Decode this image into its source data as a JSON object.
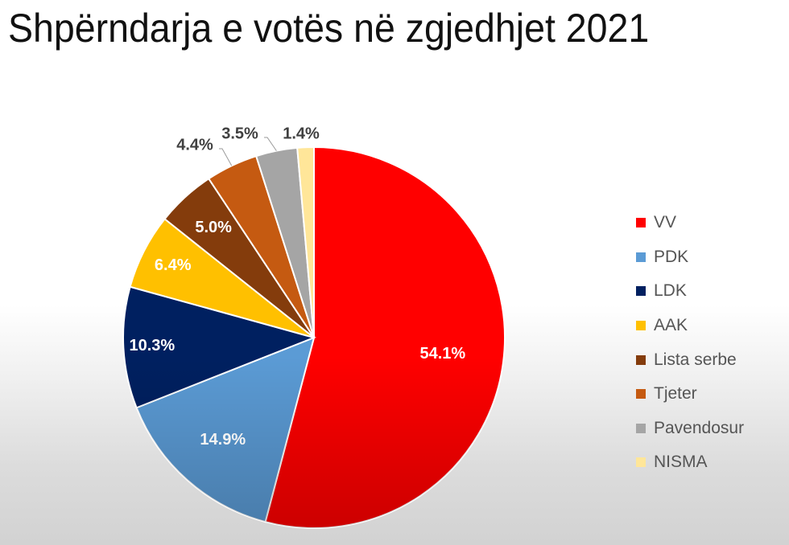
{
  "title": "Shpërndarja e votës në zgjedhjet 2021",
  "chart_data": {
    "type": "pie",
    "title": "Shpërndarja e votës në zgjedhjet 2021",
    "categories": [
      "VV",
      "PDK",
      "LDK",
      "AAK",
      "Lista serbe",
      "Tjeter",
      "Pavendosur",
      "NISMA"
    ],
    "values": [
      54.1,
      14.9,
      10.3,
      6.4,
      5.0,
      4.4,
      3.5,
      1.4
    ],
    "labels": [
      "54.1%",
      "14.9%",
      "10.3%",
      "6.4%",
      "5.0%",
      "4.4%",
      "3.5%",
      "1.4%"
    ],
    "colors": [
      "#FF0000",
      "#5B9BD5",
      "#002060",
      "#FFC000",
      "#843C0C",
      "#C55A11",
      "#A5A5A5",
      "#FFE699"
    ],
    "label_colors": [
      "#FFFFFF",
      "#F2F2F2",
      "#FFFFFF",
      "#FFFFFF",
      "#FFFFFF",
      "#404040",
      "#404040",
      "#404040"
    ],
    "start_angle_deg": 0,
    "direction": "clockwise",
    "legend_position": "right",
    "unit": "%"
  },
  "legend": {
    "items": [
      {
        "label": "VV",
        "color": "#FF0000"
      },
      {
        "label": "PDK",
        "color": "#5B9BD5"
      },
      {
        "label": "LDK",
        "color": "#002060"
      },
      {
        "label": "AAK",
        "color": "#FFC000"
      },
      {
        "label": "Lista serbe",
        "color": "#843C0C"
      },
      {
        "label": "Tjeter",
        "color": "#C55A11"
      },
      {
        "label": "Pavendosur",
        "color": "#A5A5A5"
      },
      {
        "label": "NISMA",
        "color": "#FFE699"
      }
    ]
  }
}
